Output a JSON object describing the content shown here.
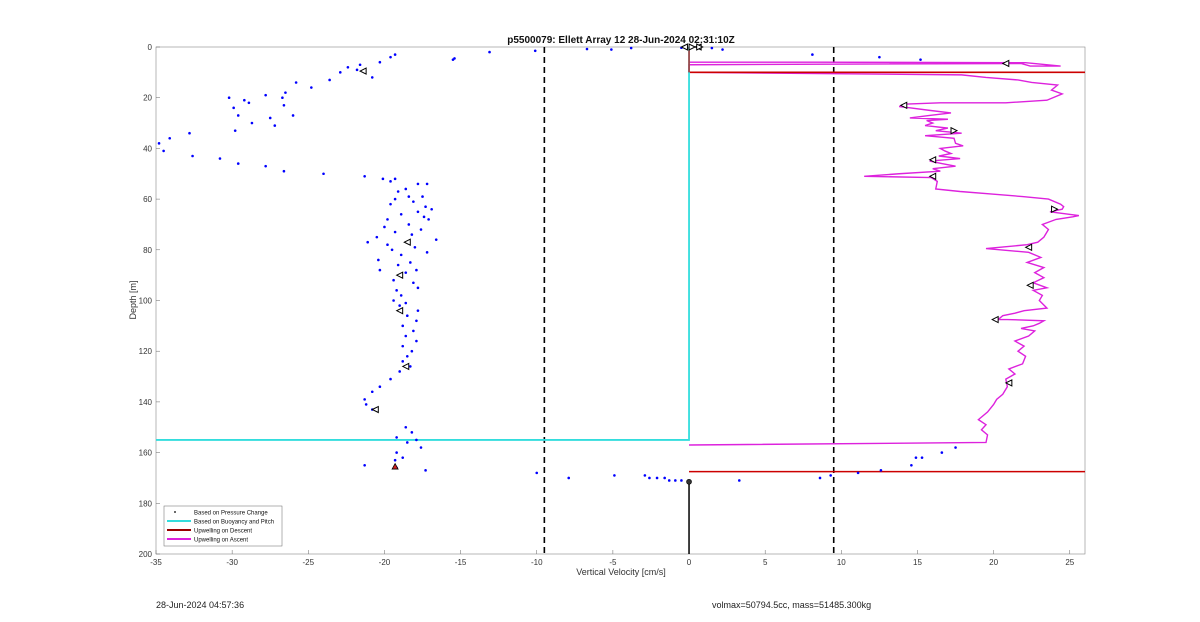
{
  "chart_data": {
    "type": "scatter",
    "title": "p5500079: Ellett Array 12 28-Jun-2024 02:31:10Z",
    "xlabel": "Vertical Velocity [cm/s]",
    "ylabel": "Depth [m]",
    "xlim": [
      -35,
      26
    ],
    "ylim": [
      0,
      200
    ],
    "y_reversed": true,
    "x_ticks": [
      -35,
      -30,
      -25,
      -20,
      -15,
      -10,
      -5,
      0,
      5,
      10,
      15,
      20,
      25
    ],
    "y_ticks": [
      0,
      20,
      40,
      60,
      80,
      100,
      120,
      140,
      160,
      180,
      200
    ],
    "grid": false,
    "legend_position": "bottom-left",
    "dashed_lines_x": [
      -9.5,
      9.5
    ],
    "series": [
      {
        "name": "Based on Pressure Change",
        "kind": "points",
        "color": "#0000ff",
        "points": [
          [
            -34.8,
            38
          ],
          [
            -34.5,
            41
          ],
          [
            -34.1,
            36
          ],
          [
            -32.8,
            34
          ],
          [
            -32.6,
            43
          ],
          [
            -30.8,
            44
          ],
          [
            -29.6,
            46
          ],
          [
            -30.2,
            20
          ],
          [
            -29.9,
            24
          ],
          [
            -29.6,
            27
          ],
          [
            -29.8,
            33
          ],
          [
            -29.2,
            21
          ],
          [
            -28.9,
            22
          ],
          [
            -28.7,
            30
          ],
          [
            -27.8,
            19
          ],
          [
            -27.5,
            28
          ],
          [
            -27.2,
            31
          ],
          [
            -26.7,
            20
          ],
          [
            -26.5,
            18
          ],
          [
            -26.6,
            23
          ],
          [
            -26.0,
            27
          ],
          [
            -25.8,
            14
          ],
          [
            -24.8,
            16
          ],
          [
            -23.6,
            13
          ],
          [
            -22.9,
            10
          ],
          [
            -22.4,
            8
          ],
          [
            -21.8,
            9
          ],
          [
            -21.6,
            7
          ],
          [
            -20.8,
            12
          ],
          [
            -20.3,
            6
          ],
          [
            -19.6,
            4
          ],
          [
            -19.3,
            3
          ],
          [
            -15.5,
            5
          ],
          [
            -15.4,
            4.5
          ],
          [
            -13.1,
            2
          ],
          [
            -10.1,
            1.5
          ],
          [
            -6.7,
            0.8
          ],
          [
            -5.1,
            1
          ],
          [
            -3.8,
            0.4
          ],
          [
            -0.5,
            0.3
          ],
          [
            1.5,
            0.4
          ],
          [
            2.2,
            1
          ],
          [
            -27.8,
            47
          ],
          [
            -26.6,
            49
          ],
          [
            -24.0,
            50
          ],
          [
            -21.3,
            51
          ],
          [
            -20.1,
            52
          ],
          [
            -19.3,
            52
          ],
          [
            -19.6,
            53
          ],
          [
            -17.8,
            54
          ],
          [
            -17.2,
            54
          ],
          [
            -18.6,
            56
          ],
          [
            -19.1,
            57
          ],
          [
            -18.4,
            59
          ],
          [
            -17.5,
            59
          ],
          [
            -19.3,
            60
          ],
          [
            -18.1,
            61
          ],
          [
            -19.6,
            62
          ],
          [
            -17.3,
            63
          ],
          [
            -16.9,
            64
          ],
          [
            -17.8,
            65
          ],
          [
            -18.9,
            66
          ],
          [
            -17.4,
            67
          ],
          [
            -19.8,
            68
          ],
          [
            -17.1,
            68
          ],
          [
            -18.4,
            70
          ],
          [
            -20.0,
            71
          ],
          [
            -17.6,
            72
          ],
          [
            -19.3,
            73
          ],
          [
            -18.2,
            74
          ],
          [
            -20.5,
            75
          ],
          [
            -16.6,
            76
          ],
          [
            -21.1,
            77
          ],
          [
            -19.8,
            78
          ],
          [
            -18.0,
            79
          ],
          [
            -19.5,
            80
          ],
          [
            -17.2,
            81
          ],
          [
            -18.9,
            82
          ],
          [
            -20.4,
            84
          ],
          [
            -18.3,
            85
          ],
          [
            -19.1,
            86
          ],
          [
            -17.9,
            88
          ],
          [
            -20.3,
            88
          ],
          [
            -18.6,
            89
          ],
          [
            -19.4,
            92
          ],
          [
            -18.1,
            93
          ],
          [
            -17.8,
            95
          ],
          [
            -19.2,
            96
          ],
          [
            -18.9,
            98
          ],
          [
            -19.4,
            100
          ],
          [
            -18.6,
            101
          ],
          [
            -19.0,
            102
          ],
          [
            -17.8,
            104
          ],
          [
            -18.5,
            106
          ],
          [
            -17.9,
            108
          ],
          [
            -18.8,
            110
          ],
          [
            -18.1,
            112
          ],
          [
            -18.6,
            114
          ],
          [
            -17.9,
            116
          ],
          [
            -18.8,
            118
          ],
          [
            -18.2,
            120
          ],
          [
            -18.5,
            122
          ],
          [
            -18.8,
            124
          ],
          [
            -18.3,
            126
          ],
          [
            -19.0,
            128
          ],
          [
            -19.6,
            131
          ],
          [
            -20.3,
            134
          ],
          [
            -20.8,
            136
          ],
          [
            -21.3,
            139
          ],
          [
            -21.2,
            141
          ],
          [
            -20.8,
            143
          ],
          [
            -18.6,
            150
          ],
          [
            -18.2,
            152
          ],
          [
            -19.2,
            154
          ],
          [
            -17.9,
            155
          ],
          [
            -18.5,
            156
          ],
          [
            -17.6,
            158
          ],
          [
            -19.2,
            160
          ],
          [
            -18.8,
            162
          ],
          [
            -19.3,
            163
          ],
          [
            -21.3,
            165
          ],
          [
            -19.2,
            166
          ],
          [
            -17.3,
            167
          ],
          [
            -10.0,
            168
          ],
          [
            -7.9,
            170
          ],
          [
            -4.9,
            169
          ],
          [
            -2.9,
            169
          ],
          [
            -2.6,
            170
          ],
          [
            -2.1,
            170
          ],
          [
            -1.6,
            170
          ],
          [
            -1.3,
            171
          ],
          [
            -0.9,
            171
          ],
          [
            -0.5,
            171
          ],
          [
            3.3,
            171
          ],
          [
            8.6,
            170
          ],
          [
            9.3,
            169
          ],
          [
            11.1,
            168
          ],
          [
            12.6,
            167
          ],
          [
            14.6,
            165
          ],
          [
            14.9,
            162
          ],
          [
            15.3,
            162
          ],
          [
            16.6,
            160
          ],
          [
            17.5,
            158
          ],
          [
            8.1,
            3
          ],
          [
            12.5,
            4
          ],
          [
            15.2,
            5
          ]
        ]
      },
      {
        "name": "Based on Buoyancy and Pitch",
        "kind": "line",
        "color": "#33dddd",
        "points": [
          [
            0,
            0
          ],
          [
            0,
            10
          ],
          [
            0,
            60
          ],
          [
            0,
            120
          ],
          [
            0,
            155
          ],
          [
            -35,
            155
          ]
        ]
      },
      {
        "name": "Upwelling on Descent",
        "kind": "line",
        "color": "#cc0000",
        "segments": [
          [
            [
              0,
              10
            ],
            [
              26,
              10
            ]
          ],
          [
            [
              0,
              167.5
            ],
            [
              26,
              167.5
            ]
          ]
        ]
      },
      {
        "name": "Upwelling on Ascent",
        "kind": "line",
        "color": "#dd22dd",
        "points": [
          [
            0,
            157
          ],
          [
            19.5,
            156
          ],
          [
            19.6,
            153
          ],
          [
            19.2,
            151
          ],
          [
            19.5,
            149
          ],
          [
            19.0,
            147
          ],
          [
            19.6,
            144
          ],
          [
            20.0,
            141
          ],
          [
            20.2,
            139
          ],
          [
            20.6,
            137
          ],
          [
            20.9,
            134
          ],
          [
            20.8,
            131
          ],
          [
            21.4,
            129
          ],
          [
            21.0,
            127
          ],
          [
            21.9,
            125
          ],
          [
            22.1,
            122
          ],
          [
            21.6,
            120
          ],
          [
            22.0,
            118
          ],
          [
            21.4,
            116
          ],
          [
            22.3,
            114
          ],
          [
            22.7,
            112
          ],
          [
            21.8,
            111
          ],
          [
            22.6,
            110
          ],
          [
            23.0,
            109
          ],
          [
            23.3,
            108
          ],
          [
            20.9,
            107.5
          ],
          [
            20.3,
            107.5
          ],
          [
            20.6,
            106
          ],
          [
            21.4,
            105
          ],
          [
            22.0,
            104
          ],
          [
            23.5,
            103
          ],
          [
            23.0,
            100
          ],
          [
            23.2,
            98
          ],
          [
            22.6,
            96
          ],
          [
            23.5,
            95
          ],
          [
            22.6,
            93
          ],
          [
            23.3,
            91
          ],
          [
            22.7,
            89
          ],
          [
            23.3,
            87
          ],
          [
            22.2,
            85
          ],
          [
            23.1,
            83
          ],
          [
            22.3,
            81
          ],
          [
            19.5,
            79.5
          ],
          [
            22.2,
            78
          ],
          [
            22.9,
            77
          ],
          [
            23.3,
            75
          ],
          [
            23.6,
            72
          ],
          [
            23.2,
            70
          ],
          [
            24.1,
            68
          ],
          [
            25.2,
            67
          ],
          [
            25.6,
            66.5
          ],
          [
            23.7,
            65
          ],
          [
            24.5,
            64
          ],
          [
            24.6,
            63
          ],
          [
            24.4,
            62
          ],
          [
            23.6,
            60
          ],
          [
            21.9,
            59
          ],
          [
            19.9,
            58
          ],
          [
            17.8,
            57
          ],
          [
            16.2,
            56
          ],
          [
            16.3,
            53
          ],
          [
            15.9,
            51.5
          ],
          [
            11.5,
            51
          ],
          [
            13.8,
            50
          ],
          [
            16.5,
            49
          ],
          [
            16.0,
            48
          ],
          [
            17.5,
            47
          ],
          [
            16.6,
            46
          ],
          [
            15.8,
            45
          ],
          [
            17.8,
            44
          ],
          [
            16.4,
            43
          ],
          [
            17.2,
            42
          ],
          [
            16.8,
            41
          ],
          [
            16.5,
            40
          ],
          [
            18.0,
            39
          ],
          [
            17.5,
            38
          ],
          [
            17.4,
            36
          ],
          [
            15.5,
            35
          ],
          [
            17.9,
            34
          ],
          [
            16.2,
            33
          ],
          [
            17.0,
            32
          ],
          [
            15.5,
            31
          ],
          [
            16.0,
            30
          ],
          [
            15.6,
            29
          ],
          [
            17.0,
            28.5
          ],
          [
            14.5,
            28
          ],
          [
            15.8,
            27
          ],
          [
            17.2,
            26
          ],
          [
            15.8,
            25
          ],
          [
            14.5,
            24
          ],
          [
            13.8,
            23.5
          ],
          [
            14.3,
            22.5
          ],
          [
            16.5,
            22
          ],
          [
            20.8,
            22
          ],
          [
            23.5,
            21
          ],
          [
            24.5,
            18.5
          ],
          [
            23.8,
            17
          ],
          [
            24.2,
            15
          ],
          [
            22.5,
            14
          ],
          [
            21.6,
            13
          ],
          [
            19.5,
            12
          ],
          [
            17.9,
            11
          ],
          [
            0,
            10
          ],
          [
            0,
            7
          ],
          [
            21.8,
            6.5
          ],
          [
            22.4,
            7.5
          ],
          [
            24.4,
            7.5
          ],
          [
            22.1,
            6.2
          ],
          [
            8.5,
            6.0
          ],
          [
            0,
            6
          ]
        ]
      }
    ],
    "markers": [
      {
        "symbol": "triangle-left",
        "points": [
          [
            -21.4,
            9.5
          ],
          [
            20.8,
            6.5
          ],
          [
            -18.5,
            77
          ],
          [
            -19.0,
            90
          ],
          [
            -19.0,
            104
          ],
          [
            -18.6,
            126
          ],
          [
            -20.6,
            143
          ],
          [
            14.1,
            23
          ],
          [
            16.0,
            44.5
          ],
          [
            16.0,
            51
          ],
          [
            22.3,
            79
          ],
          [
            22.4,
            94
          ],
          [
            20.1,
            107.5
          ],
          [
            21.0,
            132.5
          ],
          [
            -0.3,
            0
          ],
          [
            0.6,
            0
          ]
        ]
      },
      {
        "symbol": "triangle-right",
        "points": [
          [
            17.4,
            33
          ],
          [
            24.0,
            64
          ],
          [
            0.2,
            0
          ],
          [
            0.7,
            0
          ]
        ]
      },
      {
        "symbol": "triangle-red",
        "points": [
          [
            -19.3,
            165.5
          ]
        ]
      },
      {
        "symbol": "circle-dark",
        "points": [
          [
            0,
            171.5
          ]
        ]
      }
    ],
    "black_line_x0": [
      [
        0,
        171
      ],
      [
        0,
        200
      ]
    ]
  },
  "footer": {
    "left_text": "28-Jun-2024 04:57:36",
    "right_text": "volmax=50794.5cc, mass=51485.300kg"
  }
}
